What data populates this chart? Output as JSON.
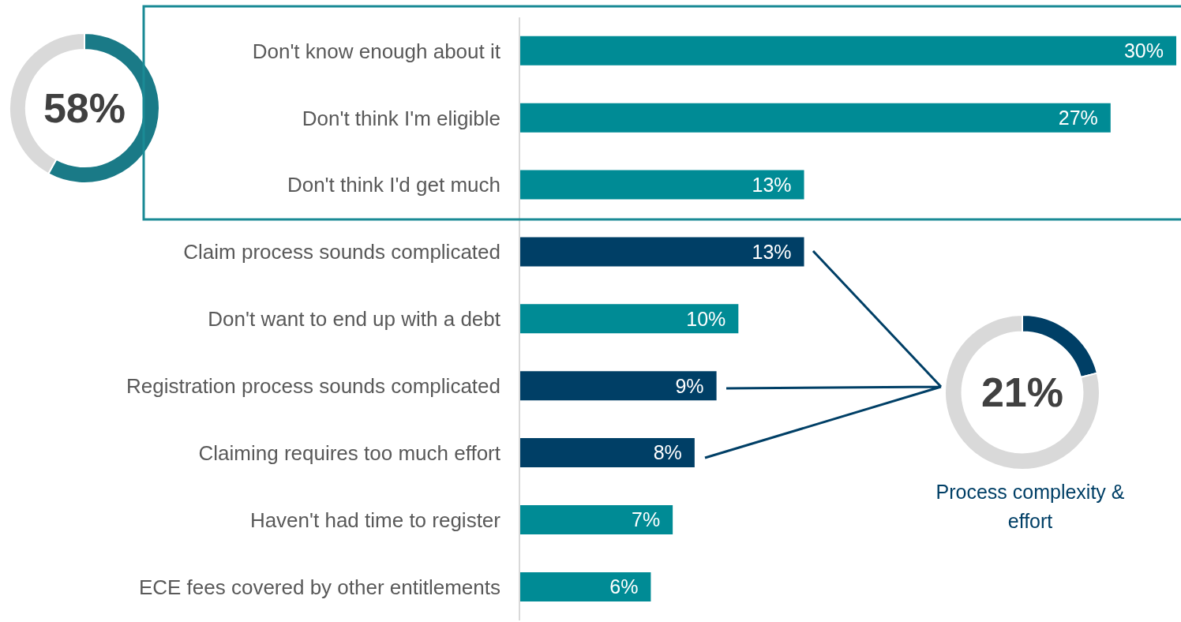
{
  "chart_data": [
    {
      "type": "bar",
      "orientation": "horizontal",
      "categories": [
        "Don't know enough about it",
        "Don't think I'm eligible",
        "Don't think I'd get much",
        "Claim process sounds complicated",
        "Don't want to end up with a debt",
        "Registration process sounds complicated",
        "Claiming requires too much effort",
        "Haven't had time to register",
        "ECE fees covered by other entitlements"
      ],
      "values": [
        30,
        27,
        13,
        13,
        10,
        9,
        8,
        7,
        6
      ],
      "colors": [
        "#008b95",
        "#008b95",
        "#008b95",
        "#003f66",
        "#008b95",
        "#003f66",
        "#003f66",
        "#008b95",
        "#008b95"
      ],
      "value_labels": [
        "30%",
        "27%",
        "13%",
        "13%",
        "10%",
        "9%",
        "8%",
        "7%",
        "6%"
      ]
    },
    {
      "type": "donut",
      "categories": [
        null,
        null
      ],
      "values": [
        58,
        42
      ],
      "colors": [
        "#1a7a87",
        "#d9d9d9"
      ],
      "annotations": [
        "58%"
      ]
    },
    {
      "type": "donut",
      "title": "Process complexity & effort",
      "categories": [
        null,
        null
      ],
      "values": [
        21,
        79
      ],
      "colors": [
        "#003f66",
        "#d9d9d9"
      ],
      "annotations": [
        "21%"
      ]
    }
  ]
}
